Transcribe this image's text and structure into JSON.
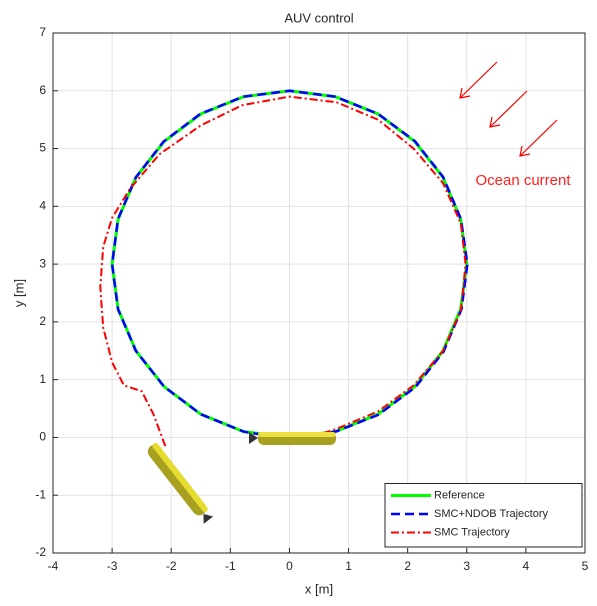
{
  "chart_data": {
    "type": "line",
    "title": "AUV control",
    "xlabel": "x [m]",
    "ylabel": "y [m]",
    "xlim": [
      -4,
      5
    ],
    "ylim": [
      -2,
      7
    ],
    "xticks": [
      -4,
      -3,
      -2,
      -1,
      0,
      1,
      2,
      3,
      4,
      5
    ],
    "yticks": [
      -2,
      -1,
      0,
      1,
      2,
      3,
      4,
      5,
      6,
      7
    ],
    "grid": true,
    "legend": "lower right",
    "annotations": [
      "Ocean current"
    ],
    "series": [
      {
        "name": "Reference",
        "color": "#00ff00",
        "style": "solid",
        "x": [
          0,
          0.776,
          1.5,
          2.121,
          2.598,
          2.898,
          3,
          2.898,
          2.598,
          2.121,
          1.5,
          0.776,
          0,
          -0.776,
          -1.5,
          -2.121,
          -2.598,
          -2.898,
          -3,
          -2.898,
          -2.598,
          -2.121,
          -1.5,
          -0.776,
          0
        ],
        "values": [
          0,
          0.102,
          0.402,
          0.879,
          1.5,
          2.224,
          3,
          3.776,
          4.5,
          5.121,
          5.598,
          5.898,
          6,
          5.898,
          5.598,
          5.121,
          4.5,
          3.776,
          3,
          2.224,
          1.5,
          0.879,
          0.402,
          0.102,
          0
        ]
      },
      {
        "name": "SMC+NDOB Trajectory",
        "color": "#0000ff",
        "style": "dashed",
        "x": [
          0,
          0.78,
          1.5,
          2.13,
          2.61,
          2.91,
          3.01,
          2.9,
          2.6,
          2.12,
          1.5,
          0.77,
          0,
          -0.78,
          -1.51,
          -2.13,
          -2.6,
          -2.9,
          -3,
          -2.9,
          -2.6,
          -2.12,
          -1.5,
          -0.77,
          -0.3
        ],
        "values": [
          0,
          0.1,
          0.39,
          0.87,
          1.49,
          2.22,
          3,
          3.78,
          4.51,
          5.13,
          5.6,
          5.9,
          6,
          5.9,
          5.6,
          5.12,
          4.5,
          3.78,
          3,
          2.22,
          1.5,
          0.88,
          0.4,
          0.1,
          0.02
        ]
      },
      {
        "name": "SMC Trajectory",
        "color": "#ff0000",
        "style": "dashdot",
        "x": [
          -2.1,
          -2.3,
          -2.5,
          -2.8,
          -3.0,
          -3.15,
          -3.2,
          -3.15,
          -3.0,
          -2.7,
          -2.2,
          -1.5,
          -0.8,
          0,
          0.8,
          1.5,
          2.1,
          2.6,
          2.9,
          2.98,
          2.9,
          2.6,
          2.1,
          1.5,
          0.8,
          0.5
        ],
        "values": [
          -0.15,
          0.4,
          0.8,
          0.9,
          1.3,
          1.9,
          2.6,
          3.3,
          3.8,
          4.3,
          4.9,
          5.4,
          5.75,
          5.9,
          5.8,
          5.5,
          5.0,
          4.4,
          3.7,
          3.0,
          2.2,
          1.5,
          0.9,
          0.45,
          0.15,
          0.05
        ]
      }
    ]
  }
}
